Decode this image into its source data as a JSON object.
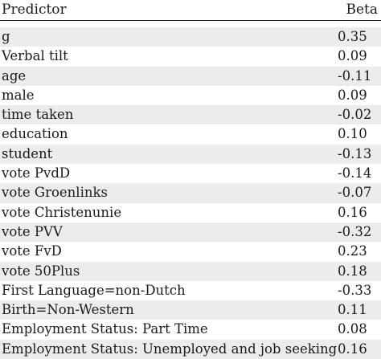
{
  "header": {
    "predictor": "Predictor",
    "beta": "Beta"
  },
  "rows": [
    {
      "predictor": "g",
      "beta": "0.35"
    },
    {
      "predictor": "Verbal tilt",
      "beta": "0.09"
    },
    {
      "predictor": "age",
      "beta": "-0.11"
    },
    {
      "predictor": "male",
      "beta": "0.09"
    },
    {
      "predictor": "time taken",
      "beta": "-0.02"
    },
    {
      "predictor": "education",
      "beta": "0.10"
    },
    {
      "predictor": "student",
      "beta": "-0.13"
    },
    {
      "predictor": "vote PvdD",
      "beta": "-0.14"
    },
    {
      "predictor": "vote Groenlinks",
      "beta": "-0.07"
    },
    {
      "predictor": "vote Christenunie",
      "beta": "0.16"
    },
    {
      "predictor": "vote PVV",
      "beta": "-0.32"
    },
    {
      "predictor": "vote FvD",
      "beta": "0.23"
    },
    {
      "predictor": "vote 50Plus",
      "beta": "0.18"
    },
    {
      "predictor": "First Language=non-Dutch",
      "beta": "-0.33"
    },
    {
      "predictor": "Birth=Non-Western",
      "beta": "0.11"
    },
    {
      "predictor": "Employment Status: Part Time",
      "beta": "0.08"
    },
    {
      "predictor": "Employment Status: Unemployed and job seeking",
      "beta": "0.16"
    }
  ]
}
